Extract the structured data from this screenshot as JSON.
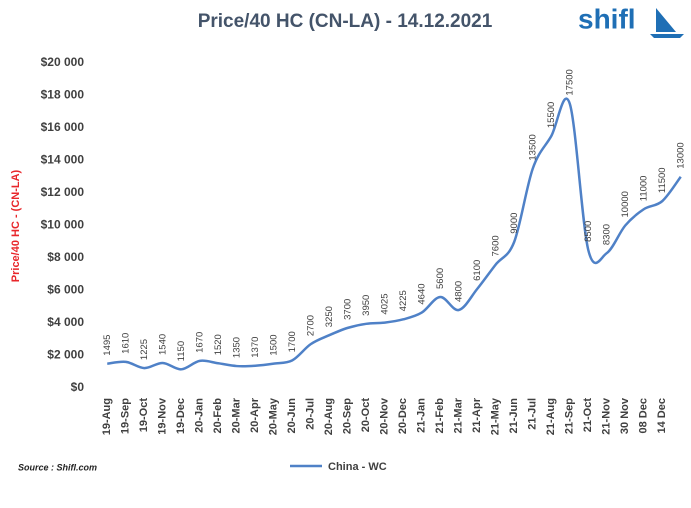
{
  "brand": "shifl",
  "source": "Source : Shifl.com",
  "chart_data": {
    "type": "line",
    "title": "Price/40 HC (CN-LA) - 14.12.2021",
    "y_label": "Price/40 HC - (CN-LA)",
    "categories": [
      "19-Aug",
      "19-Sep",
      "19-Oct",
      "19-Nov",
      "19-Dec",
      "20-Jan",
      "20-Feb",
      "20-Mar",
      "20-Apr",
      "20-May",
      "20-Jun",
      "20-Jul",
      "20-Aug",
      "20-Sep",
      "20-Oct",
      "20-Nov",
      "20-Dec",
      "21-Jan",
      "21-Feb",
      "21-Mar",
      "21-Apr",
      "21-May",
      "21-Jun",
      "21-Jul",
      "21-Aug",
      "21-Sep",
      "21-Oct",
      "21-Nov",
      "30 Nov",
      "08 Dec",
      "14 Dec",
      null
    ],
    "series": [
      {
        "name": "China - WC",
        "color": "#4f81c7",
        "values": [
          1495,
          1610,
          1225,
          1540,
          1150,
          1670,
          1520,
          1350,
          1370,
          1500,
          1700,
          2700,
          3250,
          3700,
          3950,
          4025,
          4225,
          4640,
          5600,
          4800,
          6100,
          7600,
          9000,
          13500,
          15500,
          17500,
          8500,
          8300,
          10000,
          11000,
          11500,
          13000
        ]
      }
    ],
    "ylim": [
      0,
      20000
    ],
    "yticks": [
      {
        "value": 0,
        "label": "$0"
      },
      {
        "value": 2000,
        "label": "$2 000"
      },
      {
        "value": 4000,
        "label": "$4 000"
      },
      {
        "value": 6000,
        "label": "$6 000"
      },
      {
        "value": 8000,
        "label": "$8 000"
      },
      {
        "value": 10000,
        "label": "$10 000"
      },
      {
        "value": 12000,
        "label": "$12 000"
      },
      {
        "value": 14000,
        "label": "$14 000"
      },
      {
        "value": 16000,
        "label": "$16 000"
      },
      {
        "value": 18000,
        "label": "$18 000"
      },
      {
        "value": 20000,
        "label": "$20 000"
      }
    ],
    "grid": false,
    "legend": "bottom"
  }
}
